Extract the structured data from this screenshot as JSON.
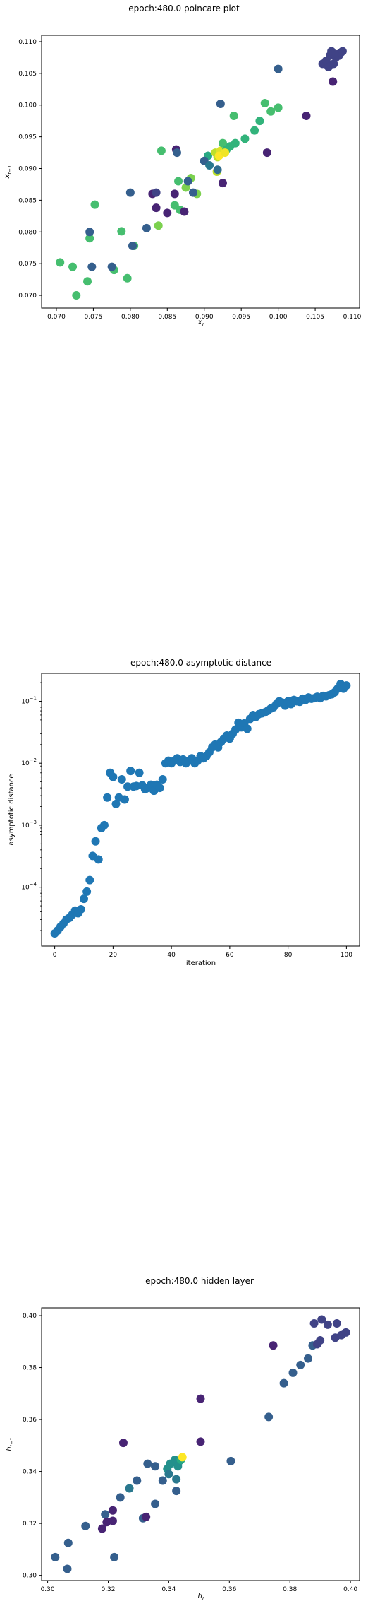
{
  "charts": [
    {
      "title": "epoch:480.0 poincare plot",
      "xlabel_main": "x",
      "xlabel_sub": "t",
      "ylabel_main": "x",
      "ylabel_sub": "t−1"
    },
    {
      "title": "epoch:480.0 asymptotic distance",
      "xlabel": "iteration",
      "ylabel": "asymptotic distance"
    },
    {
      "title": "epoch:480.0 hidden layer",
      "xlabel_main": "h",
      "xlabel_sub": "t",
      "ylabel_main": "h",
      "ylabel_sub": "t−1"
    }
  ],
  "colors": {
    "series": "#1f77b4"
  },
  "chart_data": [
    {
      "type": "scatter",
      "title": "epoch:480.0 poincare plot",
      "xlabel": "x_t",
      "ylabel": "x_{t-1}",
      "xlim": [
        0.068,
        0.111
      ],
      "ylim": [
        0.068,
        0.111
      ],
      "xticks": [
        0.07,
        0.075,
        0.08,
        0.085,
        0.09,
        0.095,
        0.1,
        0.105,
        0.11
      ],
      "yticks": [
        0.07,
        0.075,
        0.08,
        0.085,
        0.09,
        0.095,
        0.1,
        0.105,
        0.11
      ],
      "tick_format": 3,
      "colormap": "viridis",
      "points": [
        [
          0.0705,
          0.0752,
          0.7
        ],
        [
          0.0722,
          0.0745,
          0.7
        ],
        [
          0.0727,
          0.07,
          0.7
        ],
        [
          0.0742,
          0.0722,
          0.7
        ],
        [
          0.0745,
          0.079,
          0.7
        ],
        [
          0.0752,
          0.0843,
          0.7
        ],
        [
          0.0778,
          0.074,
          0.7
        ],
        [
          0.0788,
          0.0801,
          0.7
        ],
        [
          0.0796,
          0.0727,
          0.7
        ],
        [
          0.0805,
          0.0778,
          0.7
        ],
        [
          0.0838,
          0.081,
          0.8
        ],
        [
          0.0842,
          0.0928,
          0.7
        ],
        [
          0.086,
          0.0842,
          0.7
        ],
        [
          0.0865,
          0.088,
          0.7
        ],
        [
          0.0867,
          0.0835,
          0.7
        ],
        [
          0.0875,
          0.087,
          0.8
        ],
        [
          0.0882,
          0.0885,
          0.8
        ],
        [
          0.089,
          0.086,
          0.8
        ],
        [
          0.0905,
          0.092,
          0.6
        ],
        [
          0.0915,
          0.0925,
          0.9
        ],
        [
          0.0918,
          0.0918,
          0.9
        ],
        [
          0.0922,
          0.0928,
          0.95
        ],
        [
          0.0925,
          0.094,
          0.7
        ],
        [
          0.093,
          0.093,
          0.65
        ],
        [
          0.0935,
          0.0935,
          0.65
        ],
        [
          0.094,
          0.0983,
          0.7
        ],
        [
          0.0942,
          0.094,
          0.65
        ],
        [
          0.0955,
          0.0947,
          0.65
        ],
        [
          0.0968,
          0.096,
          0.65
        ],
        [
          0.0975,
          0.0975,
          0.65
        ],
        [
          0.0982,
          0.1003,
          0.7
        ],
        [
          0.099,
          0.099,
          0.7
        ],
        [
          0.1,
          0.0996,
          0.7
        ],
        [
          0.0917,
          0.0895,
          0.9
        ],
        [
          0.092,
          0.092,
          1.0
        ],
        [
          0.0928,
          0.0925,
          0.98
        ],
        [
          0.0745,
          0.08,
          0.3
        ],
        [
          0.0748,
          0.0745,
          0.3
        ],
        [
          0.0775,
          0.0745,
          0.3
        ],
        [
          0.08,
          0.0862,
          0.3
        ],
        [
          0.0803,
          0.0778,
          0.3
        ],
        [
          0.0822,
          0.0806,
          0.3
        ],
        [
          0.083,
          0.086,
          0.1
        ],
        [
          0.0835,
          0.0862,
          0.2
        ],
        [
          0.0835,
          0.0838,
          0.1
        ],
        [
          0.085,
          0.083,
          0.1
        ],
        [
          0.086,
          0.086,
          0.1
        ],
        [
          0.0862,
          0.093,
          0.1
        ],
        [
          0.0863,
          0.0925,
          0.3
        ],
        [
          0.0873,
          0.0832,
          0.1
        ],
        [
          0.0878,
          0.088,
          0.3
        ],
        [
          0.0885,
          0.0862,
          0.3
        ],
        [
          0.09,
          0.0912,
          0.3
        ],
        [
          0.0907,
          0.0905,
          0.4
        ],
        [
          0.0918,
          0.0898,
          0.35
        ],
        [
          0.0922,
          0.1002,
          0.3
        ],
        [
          0.0925,
          0.0877,
          0.1
        ],
        [
          0.0985,
          0.0925,
          0.1
        ],
        [
          0.1,
          0.1057,
          0.3
        ],
        [
          0.1038,
          0.0983,
          0.1
        ],
        [
          0.106,
          0.1065,
          0.2
        ],
        [
          0.1065,
          0.107,
          0.2
        ],
        [
          0.1068,
          0.106,
          0.2
        ],
        [
          0.107,
          0.1078,
          0.2
        ],
        [
          0.1072,
          0.1085,
          0.2
        ],
        [
          0.1075,
          0.1065,
          0.2
        ],
        [
          0.1078,
          0.1075,
          0.2
        ],
        [
          0.108,
          0.108,
          0.2
        ],
        [
          0.1082,
          0.1078,
          0.2
        ],
        [
          0.1085,
          0.1083,
          0.2
        ],
        [
          0.1087,
          0.1085,
          0.2
        ],
        [
          0.1074,
          0.1037,
          0.1
        ]
      ]
    },
    {
      "type": "scatter",
      "title": "epoch:480.0 asymptotic distance",
      "xlabel": "iteration",
      "ylabel": "asymptotic distance",
      "yscale": "log",
      "xlim": [
        -4.5,
        104.5
      ],
      "ylim_log10": [
        -4.95,
        -0.55
      ],
      "xticks": [
        0,
        20,
        40,
        60,
        80,
        100
      ],
      "yticks_exp": [
        -4,
        -3,
        -2,
        -1
      ],
      "x": [
        0,
        1,
        2,
        3,
        4,
        5,
        6,
        7,
        8,
        9,
        10,
        11,
        12,
        13,
        14,
        15,
        16,
        17,
        18,
        19,
        20,
        21,
        22,
        23,
        24,
        25,
        26,
        27,
        28,
        29,
        30,
        31,
        32,
        33,
        34,
        35,
        36,
        37,
        38,
        39,
        40,
        41,
        42,
        43,
        44,
        45,
        46,
        47,
        48,
        49,
        50,
        51,
        52,
        53,
        54,
        55,
        56,
        57,
        58,
        59,
        60,
        61,
        62,
        63,
        64,
        65,
        66,
        67,
        68,
        69,
        70,
        71,
        72,
        73,
        74,
        75,
        76,
        77,
        78,
        79,
        80,
        81,
        82,
        83,
        84,
        85,
        86,
        87,
        88,
        89,
        90,
        91,
        92,
        93,
        94,
        95,
        96,
        97,
        98,
        99,
        100
      ],
      "y": [
        1.8e-05,
        2e-05,
        2.3e-05,
        2.6e-05,
        3e-05,
        3.2e-05,
        3.6e-05,
        4.2e-05,
        3.8e-05,
        4.4e-05,
        6.5e-05,
        8.5e-05,
        0.00013,
        0.00032,
        0.00055,
        0.00028,
        0.0009,
        0.001,
        0.0028,
        0.007,
        0.006,
        0.0022,
        0.0028,
        0.0055,
        0.0026,
        0.0042,
        0.0075,
        0.0042,
        0.0043,
        0.007,
        0.0044,
        0.0038,
        0.004,
        0.0045,
        0.0036,
        0.0045,
        0.004,
        0.0055,
        0.01,
        0.011,
        0.01,
        0.011,
        0.012,
        0.0105,
        0.0115,
        0.01,
        0.011,
        0.012,
        0.01,
        0.011,
        0.013,
        0.012,
        0.013,
        0.015,
        0.018,
        0.02,
        0.018,
        0.022,
        0.025,
        0.028,
        0.025,
        0.03,
        0.035,
        0.045,
        0.038,
        0.044,
        0.036,
        0.052,
        0.06,
        0.056,
        0.062,
        0.064,
        0.066,
        0.07,
        0.076,
        0.08,
        0.09,
        0.1,
        0.095,
        0.085,
        0.1,
        0.09,
        0.105,
        0.1,
        0.098,
        0.11,
        0.105,
        0.115,
        0.11,
        0.112,
        0.118,
        0.112,
        0.122,
        0.12,
        0.125,
        0.13,
        0.14,
        0.16,
        0.19,
        0.16,
        0.18
      ]
    },
    {
      "type": "scatter",
      "title": "epoch:480.0 hidden layer",
      "xlabel": "h_t",
      "ylabel": "h_{t-1}",
      "xlim": [
        0.298,
        0.403
      ],
      "ylim": [
        0.298,
        0.403
      ],
      "xticks": [
        0.3,
        0.32,
        0.34,
        0.36,
        0.38,
        0.4
      ],
      "yticks": [
        0.3,
        0.32,
        0.34,
        0.36,
        0.38,
        0.4
      ],
      "tick_format": 2,
      "colormap": "viridis",
      "points": [
        [
          0.3025,
          0.307,
          0.3
        ],
        [
          0.3065,
          0.3025,
          0.3
        ],
        [
          0.3068,
          0.3125,
          0.3
        ],
        [
          0.3125,
          0.319,
          0.3
        ],
        [
          0.318,
          0.318,
          0.1
        ],
        [
          0.319,
          0.3235,
          0.3
        ],
        [
          0.3195,
          0.3205,
          0.1
        ],
        [
          0.3215,
          0.325,
          0.1
        ],
        [
          0.3215,
          0.321,
          0.1
        ],
        [
          0.322,
          0.307,
          0.3
        ],
        [
          0.324,
          0.33,
          0.3
        ],
        [
          0.325,
          0.351,
          0.1
        ],
        [
          0.327,
          0.3335,
          0.4
        ],
        [
          0.3295,
          0.3365,
          0.3
        ],
        [
          0.3315,
          0.322,
          0.3
        ],
        [
          0.3325,
          0.3225,
          0.1
        ],
        [
          0.333,
          0.343,
          0.3
        ],
        [
          0.3355,
          0.342,
          0.3
        ],
        [
          0.3355,
          0.3275,
          0.3
        ],
        [
          0.338,
          0.3365,
          0.3
        ],
        [
          0.3395,
          0.341,
          0.5
        ],
        [
          0.34,
          0.339,
          0.4
        ],
        [
          0.3405,
          0.343,
          0.5
        ],
        [
          0.342,
          0.3445,
          0.5
        ],
        [
          0.3425,
          0.337,
          0.4
        ],
        [
          0.3425,
          0.3325,
          0.3
        ],
        [
          0.343,
          0.342,
          0.5
        ],
        [
          0.3435,
          0.344,
          0.5
        ],
        [
          0.344,
          0.3445,
          0.6
        ],
        [
          0.3445,
          0.3455,
          1.0
        ],
        [
          0.3505,
          0.368,
          0.1
        ],
        [
          0.3505,
          0.3515,
          0.1
        ],
        [
          0.3605,
          0.344,
          0.3
        ],
        [
          0.373,
          0.361,
          0.3
        ],
        [
          0.3745,
          0.3885,
          0.1
        ],
        [
          0.378,
          0.374,
          0.3
        ],
        [
          0.381,
          0.378,
          0.3
        ],
        [
          0.3835,
          0.381,
          0.3
        ],
        [
          0.386,
          0.3835,
          0.3
        ],
        [
          0.3875,
          0.3885,
          0.3
        ],
        [
          0.388,
          0.397,
          0.2
        ],
        [
          0.389,
          0.389,
          0.2
        ],
        [
          0.39,
          0.3905,
          0.2
        ],
        [
          0.3905,
          0.3985,
          0.2
        ],
        [
          0.3925,
          0.3965,
          0.2
        ],
        [
          0.395,
          0.3915,
          0.2
        ],
        [
          0.3955,
          0.397,
          0.2
        ],
        [
          0.397,
          0.3925,
          0.2
        ],
        [
          0.3985,
          0.3935,
          0.2
        ]
      ]
    }
  ]
}
